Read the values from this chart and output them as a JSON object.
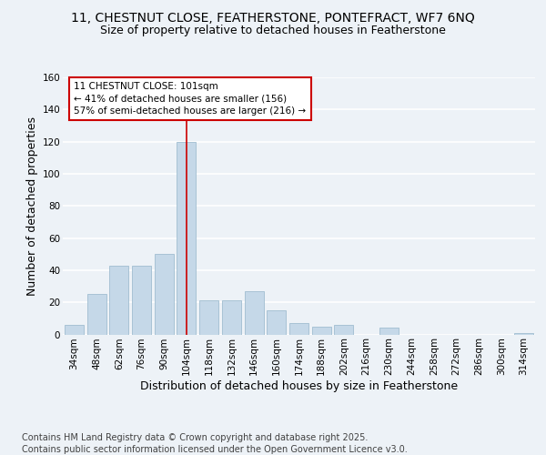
{
  "title_line1": "11, CHESTNUT CLOSE, FEATHERSTONE, PONTEFRACT, WF7 6NQ",
  "title_line2": "Size of property relative to detached houses in Featherstone",
  "xlabel": "Distribution of detached houses by size in Featherstone",
  "ylabel": "Number of detached properties",
  "categories": [
    "34sqm",
    "48sqm",
    "62sqm",
    "76sqm",
    "90sqm",
    "104sqm",
    "118sqm",
    "132sqm",
    "146sqm",
    "160sqm",
    "174sqm",
    "188sqm",
    "202sqm",
    "216sqm",
    "230sqm",
    "244sqm",
    "258sqm",
    "272sqm",
    "286sqm",
    "300sqm",
    "314sqm"
  ],
  "values": [
    6,
    25,
    43,
    43,
    50,
    120,
    21,
    21,
    27,
    15,
    7,
    5,
    6,
    0,
    4,
    0,
    0,
    0,
    0,
    0,
    1
  ],
  "bar_color": "#c5d8e8",
  "bar_edge_color": "#a0bdd0",
  "vline_x_index": 5,
  "vline_color": "#cc0000",
  "annotation_box_text": "11 CHESTNUT CLOSE: 101sqm\n← 41% of detached houses are smaller (156)\n57% of semi-detached houses are larger (216) →",
  "annotation_box_color": "#cc0000",
  "annotation_box_bg": "#ffffff",
  "ylim": [
    0,
    160
  ],
  "yticks": [
    0,
    20,
    40,
    60,
    80,
    100,
    120,
    140,
    160
  ],
  "footer_line1": "Contains HM Land Registry data © Crown copyright and database right 2025.",
  "footer_line2": "Contains public sector information licensed under the Open Government Licence v3.0.",
  "background_color": "#edf2f7",
  "plot_bg_color": "#edf2f7",
  "grid_color": "#ffffff",
  "title_fontsize": 10,
  "subtitle_fontsize": 9,
  "axis_label_fontsize": 9,
  "tick_fontsize": 7.5,
  "footer_fontsize": 7,
  "ann_fontsize": 7.5
}
